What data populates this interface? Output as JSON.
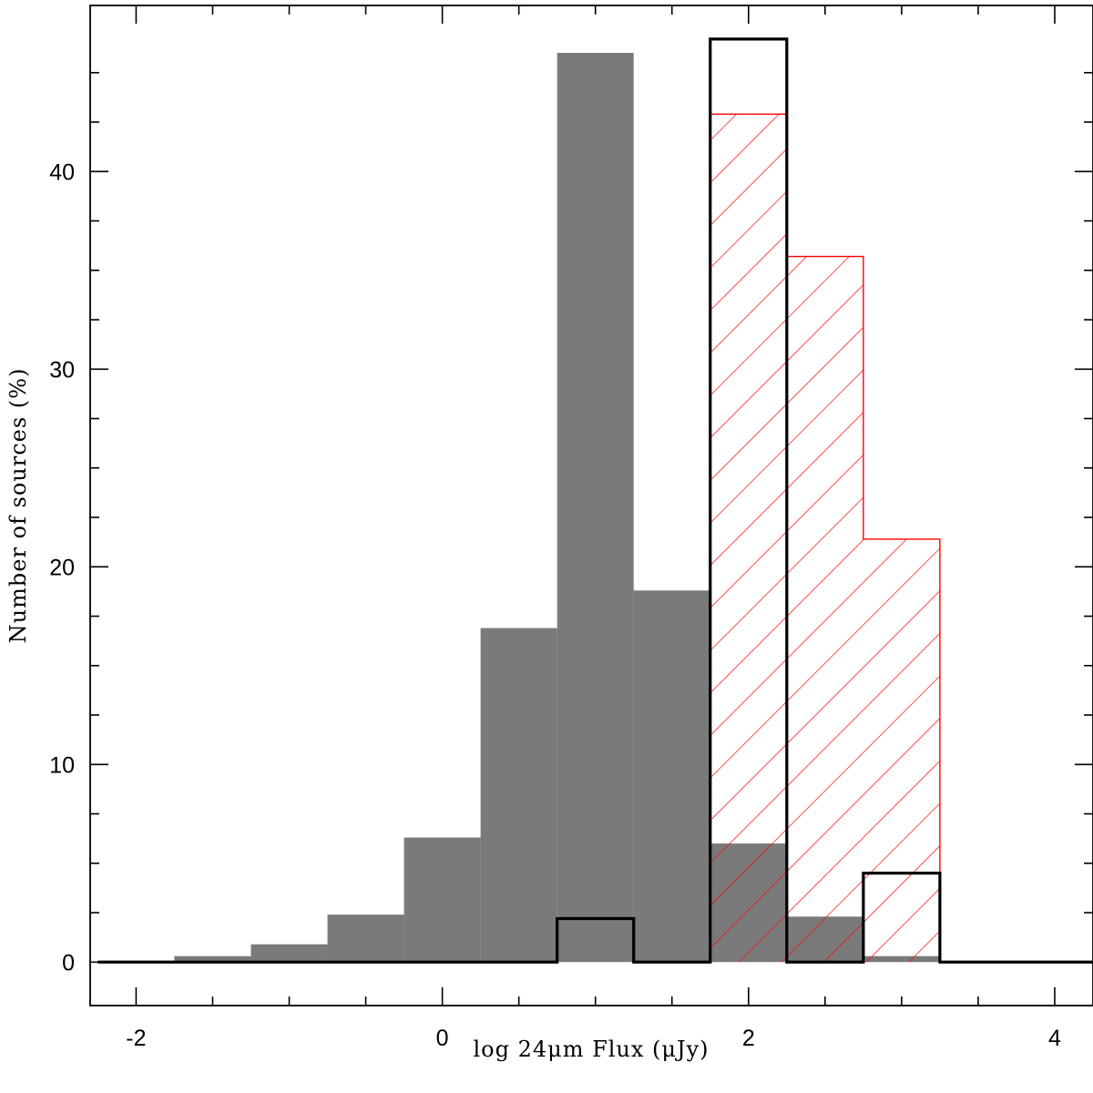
{
  "chart_data": {
    "type": "bar",
    "xlabel": "log 24μm Flux (μJy)",
    "ylabel": "Number of sources (%)",
    "xlim": [
      -2.3,
      4.25
    ],
    "ylim": [
      -2.2,
      48.4
    ],
    "x_ticks": [
      -2,
      0,
      2,
      4
    ],
    "x_tick_labels": [
      "-2",
      "0",
      "2",
      "4"
    ],
    "y_ticks": [
      0,
      10,
      20,
      30,
      40
    ],
    "y_tick_labels": [
      "0",
      "10",
      "20",
      "30",
      "40"
    ],
    "bin_width": 0.5,
    "series": [
      {
        "style": "filled",
        "color": "#7a7a7a",
        "bins": [
          {
            "x0": -1.75,
            "value": 0.3
          },
          {
            "x0": -1.25,
            "value": 0.9
          },
          {
            "x0": -0.75,
            "value": 2.4
          },
          {
            "x0": -0.25,
            "value": 6.3
          },
          {
            "x0": 0.25,
            "value": 16.9
          },
          {
            "x0": 0.75,
            "value": 46.0
          },
          {
            "x0": 1.25,
            "value": 18.8
          },
          {
            "x0": 1.75,
            "value": 6.0
          },
          {
            "x0": 2.25,
            "value": 2.3
          },
          {
            "x0": 2.75,
            "value": 0.3
          }
        ]
      },
      {
        "style": "hatched",
        "color": "#ff0000",
        "bins": [
          {
            "x0": 1.75,
            "value": 42.9
          },
          {
            "x0": 2.25,
            "value": 35.7
          },
          {
            "x0": 2.75,
            "value": 21.4
          }
        ]
      },
      {
        "style": "outline",
        "color": "#000000",
        "bins": [
          {
            "x0": 0.75,
            "value": 2.2
          },
          {
            "x0": 1.75,
            "value": 46.7
          },
          {
            "x0": 2.75,
            "value": 4.5
          }
        ],
        "baseline_range": [
          -2.25,
          4.25
        ]
      }
    ]
  }
}
